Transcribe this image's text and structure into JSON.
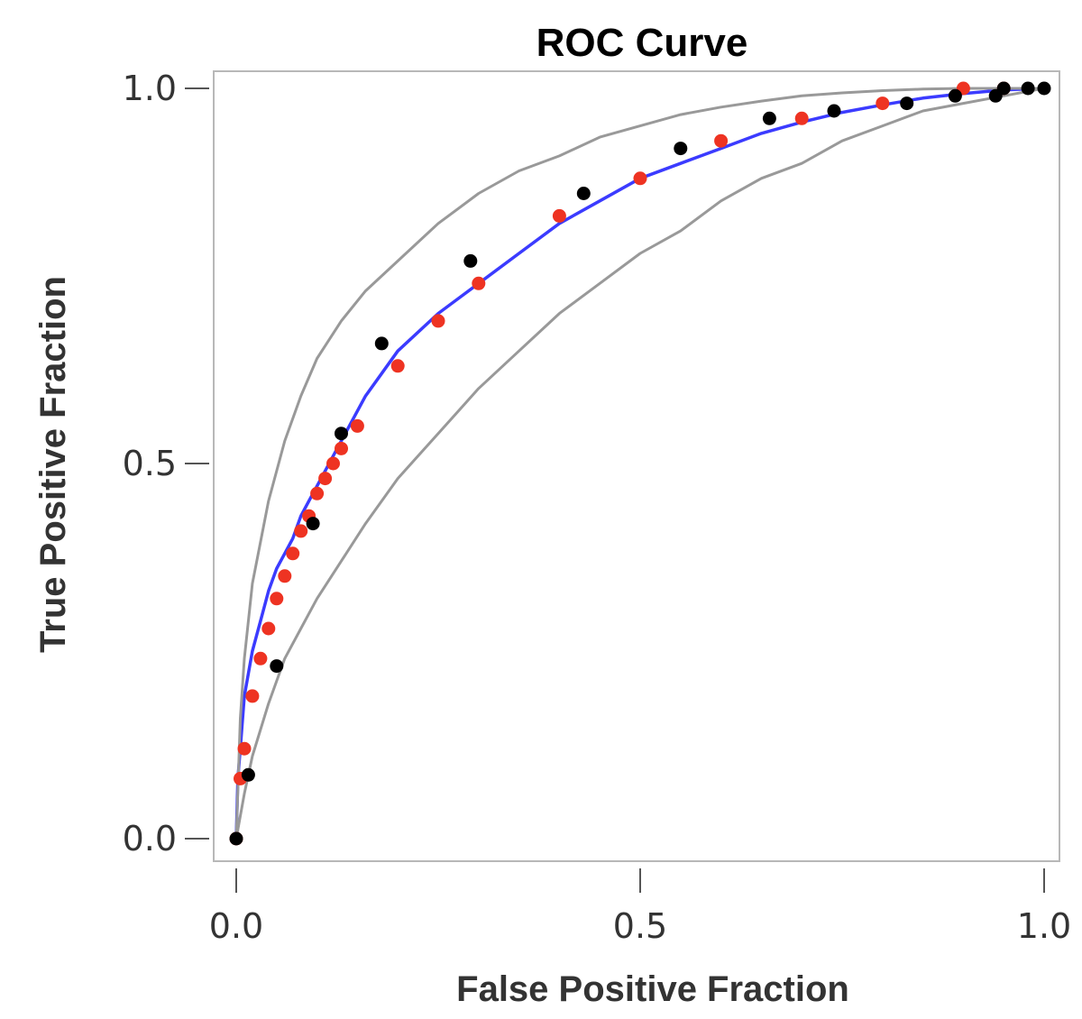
{
  "chart_data": {
    "type": "scatter",
    "title": "ROC Curve",
    "xlabel": "False Positive Fraction",
    "ylabel": "True Positive Fraction",
    "xlim": [
      0,
      1
    ],
    "ylim": [
      0,
      1
    ],
    "xticks": [
      0.0,
      0.5,
      1.0
    ],
    "yticks": [
      0.0,
      0.5,
      1.0
    ],
    "xtick_labels": [
      "0.0",
      "0.5",
      "1.0"
    ],
    "ytick_labels": [
      "0.0",
      "0.5",
      "1.0"
    ],
    "grid": false,
    "legend": null,
    "series": [
      {
        "kind": "line",
        "color": "#3b3bff",
        "x": [
          0,
          0.002,
          0.005,
          0.01,
          0.02,
          0.03,
          0.04,
          0.05,
          0.06,
          0.07,
          0.08,
          0.09,
          0.1,
          0.11,
          0.12,
          0.13,
          0.14,
          0.16,
          0.18,
          0.2,
          0.25,
          0.3,
          0.35,
          0.4,
          0.45,
          0.5,
          0.55,
          0.6,
          0.65,
          0.7,
          0.75,
          0.8,
          0.85,
          0.9,
          0.95,
          1.0
        ],
        "y": [
          0,
          0.08,
          0.12,
          0.19,
          0.25,
          0.29,
          0.33,
          0.36,
          0.38,
          0.4,
          0.43,
          0.45,
          0.47,
          0.49,
          0.51,
          0.53,
          0.55,
          0.59,
          0.62,
          0.65,
          0.7,
          0.74,
          0.78,
          0.82,
          0.85,
          0.88,
          0.9,
          0.92,
          0.94,
          0.955,
          0.968,
          0.978,
          0.987,
          0.993,
          0.998,
          1.0
        ]
      },
      {
        "kind": "line",
        "color": "#999999",
        "x": [
          0,
          0.005,
          0.01,
          0.02,
          0.04,
          0.06,
          0.08,
          0.1,
          0.13,
          0.16,
          0.2,
          0.25,
          0.3,
          0.35,
          0.4,
          0.45,
          0.5,
          0.55,
          0.6,
          0.65,
          0.7,
          0.75,
          0.8,
          0.85,
          0.9,
          0.95,
          1.0
        ],
        "y": [
          0,
          0.16,
          0.24,
          0.34,
          0.45,
          0.53,
          0.59,
          0.64,
          0.69,
          0.73,
          0.77,
          0.82,
          0.86,
          0.89,
          0.91,
          0.935,
          0.95,
          0.965,
          0.975,
          0.983,
          0.99,
          0.994,
          0.997,
          0.999,
          1.0,
          1.0,
          1.0
        ]
      },
      {
        "kind": "line",
        "color": "#999999",
        "x": [
          0,
          0.005,
          0.01,
          0.02,
          0.04,
          0.06,
          0.08,
          0.1,
          0.13,
          0.16,
          0.2,
          0.25,
          0.3,
          0.35,
          0.4,
          0.45,
          0.5,
          0.55,
          0.6,
          0.65,
          0.7,
          0.75,
          0.8,
          0.85,
          0.9,
          0.95,
          1.0
        ],
        "y": [
          0,
          0.03,
          0.06,
          0.11,
          0.18,
          0.24,
          0.28,
          0.32,
          0.37,
          0.42,
          0.48,
          0.54,
          0.6,
          0.65,
          0.7,
          0.74,
          0.78,
          0.81,
          0.85,
          0.88,
          0.9,
          0.93,
          0.95,
          0.97,
          0.98,
          0.99,
          1.0
        ]
      },
      {
        "kind": "points",
        "color": "#ee3322",
        "x": [
          0.0,
          0.005,
          0.01,
          0.02,
          0.03,
          0.04,
          0.05,
          0.06,
          0.07,
          0.08,
          0.09,
          0.1,
          0.11,
          0.12,
          0.13,
          0.15,
          0.2,
          0.25,
          0.3,
          0.4,
          0.5,
          0.6,
          0.7,
          0.8,
          0.9,
          0.95
        ],
        "y": [
          0.0,
          0.08,
          0.12,
          0.19,
          0.24,
          0.28,
          0.32,
          0.35,
          0.38,
          0.41,
          0.43,
          0.46,
          0.48,
          0.5,
          0.52,
          0.55,
          0.63,
          0.69,
          0.74,
          0.83,
          0.88,
          0.93,
          0.96,
          0.98,
          1.0,
          1.0
        ]
      },
      {
        "kind": "points",
        "color": "#000000",
        "x": [
          0.0,
          0.015,
          0.05,
          0.095,
          0.13,
          0.18,
          0.29,
          0.43,
          0.55,
          0.66,
          0.74,
          0.83,
          0.89,
          0.94,
          0.95,
          0.98,
          1.0
        ],
        "y": [
          0.0,
          0.085,
          0.23,
          0.42,
          0.54,
          0.66,
          0.77,
          0.86,
          0.92,
          0.96,
          0.97,
          0.98,
          0.99,
          0.99,
          1.0,
          1.0,
          1.0
        ]
      }
    ]
  }
}
